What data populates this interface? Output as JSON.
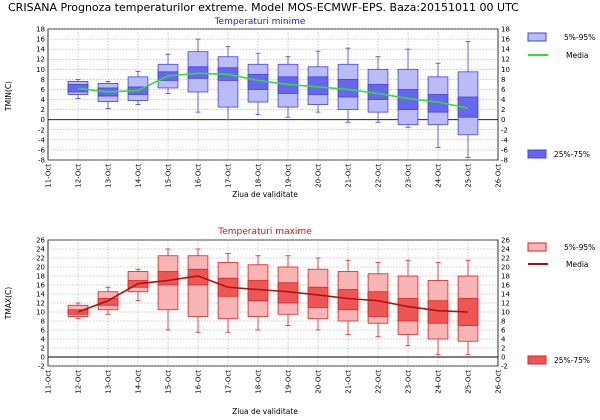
{
  "header": {
    "title": "CRISANA  Prognoza temperaturilor extreme.  Model MOS-ECMWF-EPS. Baza:20151011 00 UTC"
  },
  "chart_data": [
    {
      "type": "box",
      "title": "Temperaturi minime",
      "title_color": "#2222cc",
      "ylabel": "TMIN(C)",
      "xlabel": "Ziua de validitate",
      "ylim": [
        -8,
        18
      ],
      "yticks": [
        -8,
        -6,
        -4,
        -2,
        0,
        2,
        4,
        6,
        8,
        10,
        12,
        14,
        16,
        18
      ],
      "categories": [
        "11-Oct",
        "12-Oct",
        "13-Oct",
        "14-Oct",
        "15-Oct",
        "16-Oct",
        "17-Oct",
        "18-Oct",
        "19-Oct",
        "20-Oct",
        "21-Oct",
        "22-Oct",
        "23-Oct",
        "24-Oct",
        "25-Oct",
        "26-Oct"
      ],
      "box_color": "#4444dd",
      "box_fill_inner": "#6666ee",
      "box_fill_outer": "#bbbbf5",
      "line_color": "#33dd33",
      "legend": {
        "outer": "5%-95%",
        "mean": "Media",
        "inner": "25%-75%"
      },
      "boxes": [
        {
          "date": "12-Oct",
          "min": 4.2,
          "p5": 5.0,
          "p25": 5.5,
          "p75": 7.0,
          "p95": 7.6,
          "max": 8.0,
          "mean": 6.2
        },
        {
          "date": "13-Oct",
          "min": 2.2,
          "p5": 3.6,
          "p25": 4.7,
          "p75": 6.3,
          "p95": 7.2,
          "max": 7.6,
          "mean": 5.5
        },
        {
          "date": "14-Oct",
          "min": 3.0,
          "p5": 3.8,
          "p25": 5.0,
          "p75": 6.5,
          "p95": 8.5,
          "max": 9.6,
          "mean": 5.8
        },
        {
          "date": "15-Oct",
          "min": 5.2,
          "p5": 6.3,
          "p25": 7.8,
          "p75": 9.5,
          "p95": 11.0,
          "max": 13.0,
          "mean": 8.7
        },
        {
          "date": "16-Oct",
          "min": 1.5,
          "p5": 5.5,
          "p25": 8.2,
          "p75": 10.5,
          "p95": 13.5,
          "max": 16.0,
          "mean": 9.2
        },
        {
          "date": "17-Oct",
          "min": 0.0,
          "p5": 2.5,
          "p25": 7.8,
          "p75": 10.3,
          "p95": 12.5,
          "max": 14.5,
          "mean": 9.0
        },
        {
          "date": "18-Oct",
          "min": 1.0,
          "p5": 3.5,
          "p25": 6.0,
          "p75": 9.0,
          "p95": 11.0,
          "max": 13.2,
          "mean": 7.8
        },
        {
          "date": "19-Oct",
          "min": 0.5,
          "p5": 2.5,
          "p25": 5.2,
          "p75": 8.5,
          "p95": 11.0,
          "max": 12.5,
          "mean": 7.0
        },
        {
          "date": "20-Oct",
          "min": 1.5,
          "p5": 3.0,
          "p25": 5.0,
          "p75": 8.5,
          "p95": 10.5,
          "max": 13.6,
          "mean": 6.5
        },
        {
          "date": "21-Oct",
          "min": -0.5,
          "p5": 2.0,
          "p25": 4.5,
          "p75": 8.0,
          "p95": 11.0,
          "max": 14.2,
          "mean": 6.0
        },
        {
          "date": "22-Oct",
          "min": -0.5,
          "p5": 1.5,
          "p25": 4.0,
          "p75": 7.0,
          "p95": 10.0,
          "max": 12.5,
          "mean": 5.2
        },
        {
          "date": "23-Oct",
          "min": -1.5,
          "p5": -1.0,
          "p25": 2.0,
          "p75": 6.0,
          "p95": 10.0,
          "max": 14.0,
          "mean": 4.2
        },
        {
          "date": "24-Oct",
          "min": -5.5,
          "p5": -1.0,
          "p25": 1.5,
          "p75": 5.0,
          "p95": 8.5,
          "max": 11.2,
          "mean": 3.5
        },
        {
          "date": "25-Oct",
          "min": -7.5,
          "p5": -3.0,
          "p25": 0.5,
          "p75": 4.5,
          "p95": 9.5,
          "max": 15.5,
          "mean": 2.3
        }
      ]
    },
    {
      "type": "box",
      "title": "Temperaturi maxime",
      "title_color": "#dd1111",
      "ylabel": "TMAX(C)",
      "xlabel": "Ziua de validitate",
      "ylim": [
        -2,
        26
      ],
      "yticks": [
        -2,
        0,
        2,
        4,
        6,
        8,
        10,
        12,
        14,
        16,
        18,
        20,
        22,
        24,
        26
      ],
      "categories": [
        "11-Oct",
        "12-Oct",
        "13-Oct",
        "14-Oct",
        "15-Oct",
        "16-Oct",
        "17-Oct",
        "18-Oct",
        "19-Oct",
        "20-Oct",
        "21-Oct",
        "22-Oct",
        "23-Oct",
        "24-Oct",
        "25-Oct",
        "26-Oct"
      ],
      "box_color": "#dd2222",
      "box_fill_inner": "#ee5555",
      "box_fill_outer": "#f7b5b5",
      "line_color": "#aa1111",
      "legend": {
        "outer": "5%-95%",
        "mean": "Media",
        "inner": "25%-75%"
      },
      "boxes": [
        {
          "date": "12-Oct",
          "min": 8.5,
          "p5": 9.0,
          "p25": 9.5,
          "p75": 10.5,
          "p95": 11.5,
          "max": 12.0,
          "mean": 10.0
        },
        {
          "date": "13-Oct",
          "min": 9.5,
          "p5": 10.5,
          "p25": 11.5,
          "p75": 13.0,
          "p95": 14.5,
          "max": 15.5,
          "mean": 12.5
        },
        {
          "date": "14-Oct",
          "min": 12.5,
          "p5": 14.5,
          "p25": 15.5,
          "p75": 17.0,
          "p95": 19.0,
          "max": 19.5,
          "mean": 16.3
        },
        {
          "date": "15-Oct",
          "min": 6.0,
          "p5": 10.5,
          "p25": 16.0,
          "p75": 19.0,
          "p95": 22.5,
          "max": 24.0,
          "mean": 17.0
        },
        {
          "date": "16-Oct",
          "min": 5.5,
          "p5": 9.0,
          "p25": 16.0,
          "p75": 19.5,
          "p95": 22.5,
          "max": 24.0,
          "mean": 18.0
        },
        {
          "date": "17-Oct",
          "min": 5.5,
          "p5": 8.5,
          "p25": 13.5,
          "p75": 17.5,
          "p95": 21.0,
          "max": 23.0,
          "mean": 15.5
        },
        {
          "date": "18-Oct",
          "min": 6.0,
          "p5": 9.0,
          "p25": 12.5,
          "p75": 17.0,
          "p95": 20.5,
          "max": 22.5,
          "mean": 15.0
        },
        {
          "date": "19-Oct",
          "min": 7.0,
          "p5": 9.5,
          "p25": 12.0,
          "p75": 16.5,
          "p95": 20.0,
          "max": 22.5,
          "mean": 14.5
        },
        {
          "date": "20-Oct",
          "min": 6.0,
          "p5": 8.5,
          "p25": 11.0,
          "p75": 15.5,
          "p95": 19.5,
          "max": 22.0,
          "mean": 13.8
        },
        {
          "date": "21-Oct",
          "min": 5.0,
          "p5": 8.0,
          "p25": 10.5,
          "p75": 15.0,
          "p95": 19.0,
          "max": 21.5,
          "mean": 13.0
        },
        {
          "date": "22-Oct",
          "min": 4.5,
          "p5": 7.5,
          "p25": 9.0,
          "p75": 14.5,
          "p95": 18.5,
          "max": 21.0,
          "mean": 12.5
        },
        {
          "date": "23-Oct",
          "min": 2.5,
          "p5": 5.0,
          "p25": 8.0,
          "p75": 13.0,
          "p95": 18.0,
          "max": 21.5,
          "mean": 11.2
        },
        {
          "date": "24-Oct",
          "min": 0.5,
          "p5": 4.0,
          "p25": 7.5,
          "p75": 12.5,
          "p95": 17.0,
          "max": 21.0,
          "mean": 10.3
        },
        {
          "date": "25-Oct",
          "min": 0.5,
          "p5": 3.5,
          "p25": 7.0,
          "p75": 13.0,
          "p95": 18.0,
          "max": 21.5,
          "mean": 10.0
        }
      ]
    }
  ]
}
